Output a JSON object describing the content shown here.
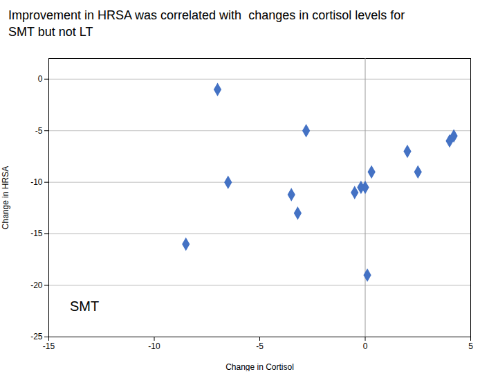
{
  "chart_data": {
    "type": "scatter",
    "title": "Improvement in HRSA was correlated with  changes in cortisol levels for\nSMT but not LT",
    "x_label": "Change in Cortisol",
    "y_label": "Change in HRSA",
    "x": [
      -7.0,
      -8.5,
      -6.5,
      -3.5,
      -3.2,
      -2.8,
      -0.5,
      -0.2,
      0.0,
      0.1,
      0.3,
      2.0,
      2.5,
      4.0,
      4.2
    ],
    "values": [
      -1.0,
      -16.0,
      -10.0,
      -11.2,
      -13.0,
      -5.0,
      -11.0,
      -10.5,
      -10.5,
      -19.0,
      -9.0,
      -7.0,
      -9.0,
      -6.0,
      -5.5
    ],
    "color": "#4472C4",
    "marker": "diamond",
    "xlim": [
      -15,
      5
    ],
    "ylim": [
      -25,
      2
    ],
    "xticks": [
      -15,
      -10,
      -5,
      0,
      5
    ],
    "yticks": [
      0,
      -5,
      -10,
      -15,
      -20,
      -25
    ],
    "grid": "y",
    "vlines": [
      0
    ],
    "annotations": [
      {
        "text": "SMT",
        "x": -14.0,
        "y": -22.5
      }
    ]
  }
}
